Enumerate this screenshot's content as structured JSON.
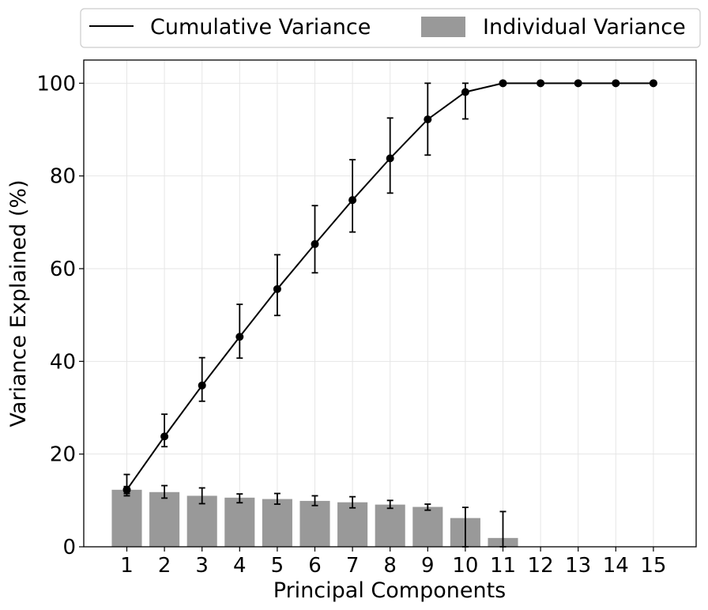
{
  "chart_data": {
    "type": "bar",
    "xlabel": "Principal Components",
    "ylabel": "Variance Explained (%)",
    "categories": [
      "1",
      "2",
      "3",
      "4",
      "5",
      "6",
      "7",
      "8",
      "9",
      "10",
      "11",
      "12",
      "13",
      "14",
      "15"
    ],
    "ylim": [
      0,
      105
    ],
    "yticks": [
      "0",
      "20",
      "40",
      "60",
      "80",
      "100"
    ],
    "grid": true,
    "legend": {
      "placement": "top-center-outside",
      "entries": [
        "Cumulative Variance",
        "Individual Variance"
      ]
    },
    "series": [
      {
        "name": "Individual Variance",
        "kind": "bar",
        "color": "#999999",
        "values": [
          12.3,
          11.8,
          11.0,
          10.6,
          10.3,
          9.9,
          9.6,
          9.1,
          8.6,
          6.2,
          1.9,
          0,
          0,
          0,
          0
        ],
        "err_low": [
          11.5,
          10.5,
          9.3,
          9.5,
          9.2,
          8.9,
          8.4,
          8.3,
          7.9,
          0,
          0,
          0,
          0,
          0,
          0
        ],
        "err_high": [
          13.0,
          13.2,
          12.7,
          11.4,
          11.5,
          11.0,
          10.8,
          10.0,
          9.2,
          8.5,
          7.6,
          0,
          0,
          0,
          0
        ]
      },
      {
        "name": "Cumulative Variance",
        "kind": "line",
        "color": "#000000",
        "values": [
          12.3,
          23.8,
          34.8,
          45.3,
          55.6,
          65.3,
          74.8,
          83.8,
          92.2,
          98.1,
          100,
          100,
          100,
          100,
          100
        ],
        "err_low": [
          11.0,
          21.6,
          31.4,
          40.7,
          49.9,
          59.1,
          67.9,
          76.3,
          84.5,
          92.3,
          100,
          100,
          100,
          100,
          100
        ],
        "err_high": [
          15.6,
          28.6,
          40.8,
          52.3,
          63.0,
          73.6,
          83.5,
          92.5,
          100,
          100,
          100,
          100,
          100,
          100,
          100
        ]
      }
    ]
  }
}
